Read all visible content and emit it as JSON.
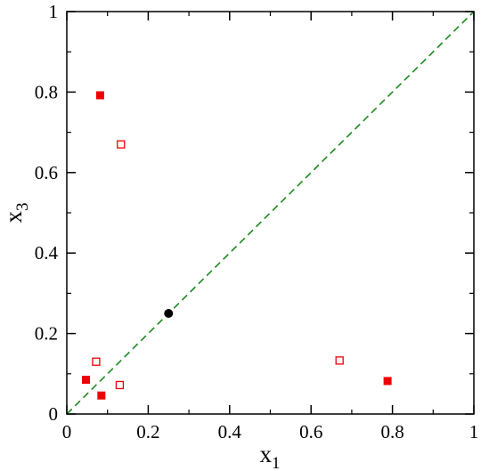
{
  "chart_data": {
    "type": "scatter",
    "title": "",
    "xlabel": "x",
    "xlabel_subscript": "1",
    "ylabel": "x",
    "ylabel_subscript": "3",
    "xlim": [
      0,
      1
    ],
    "ylim": [
      0,
      1
    ],
    "x_ticks": [
      0,
      0.2,
      0.4,
      0.6,
      0.8,
      1
    ],
    "y_ticks": [
      0,
      0.2,
      0.4,
      0.6,
      0.8,
      1
    ],
    "x_tick_labels": [
      "0",
      "0.2",
      "0.4",
      "0.6",
      "0.8",
      "1"
    ],
    "y_tick_labels": [
      "0",
      "0.2",
      "0.4",
      "0.6",
      "0.8",
      "1"
    ],
    "grid": false,
    "legend": "none",
    "reference_line": {
      "points": [
        [
          0,
          0
        ],
        [
          1,
          1
        ]
      ],
      "style": "dashed",
      "color": "#1a8a1a"
    },
    "series": [
      {
        "marker": "filled-square",
        "color": "#ee0000",
        "points": [
          {
            "x": 0.082,
            "y": 0.792
          },
          {
            "x": 0.047,
            "y": 0.085
          },
          {
            "x": 0.085,
            "y": 0.046
          },
          {
            "x": 0.788,
            "y": 0.082
          }
        ]
      },
      {
        "marker": "open-square",
        "color": "#ee0000",
        "points": [
          {
            "x": 0.133,
            "y": 0.67
          },
          {
            "x": 0.072,
            "y": 0.13
          },
          {
            "x": 0.13,
            "y": 0.072
          },
          {
            "x": 0.67,
            "y": 0.133
          }
        ]
      },
      {
        "marker": "filled-circle",
        "color": "#000000",
        "points": [
          {
            "x": 0.25,
            "y": 0.25
          }
        ]
      }
    ]
  }
}
